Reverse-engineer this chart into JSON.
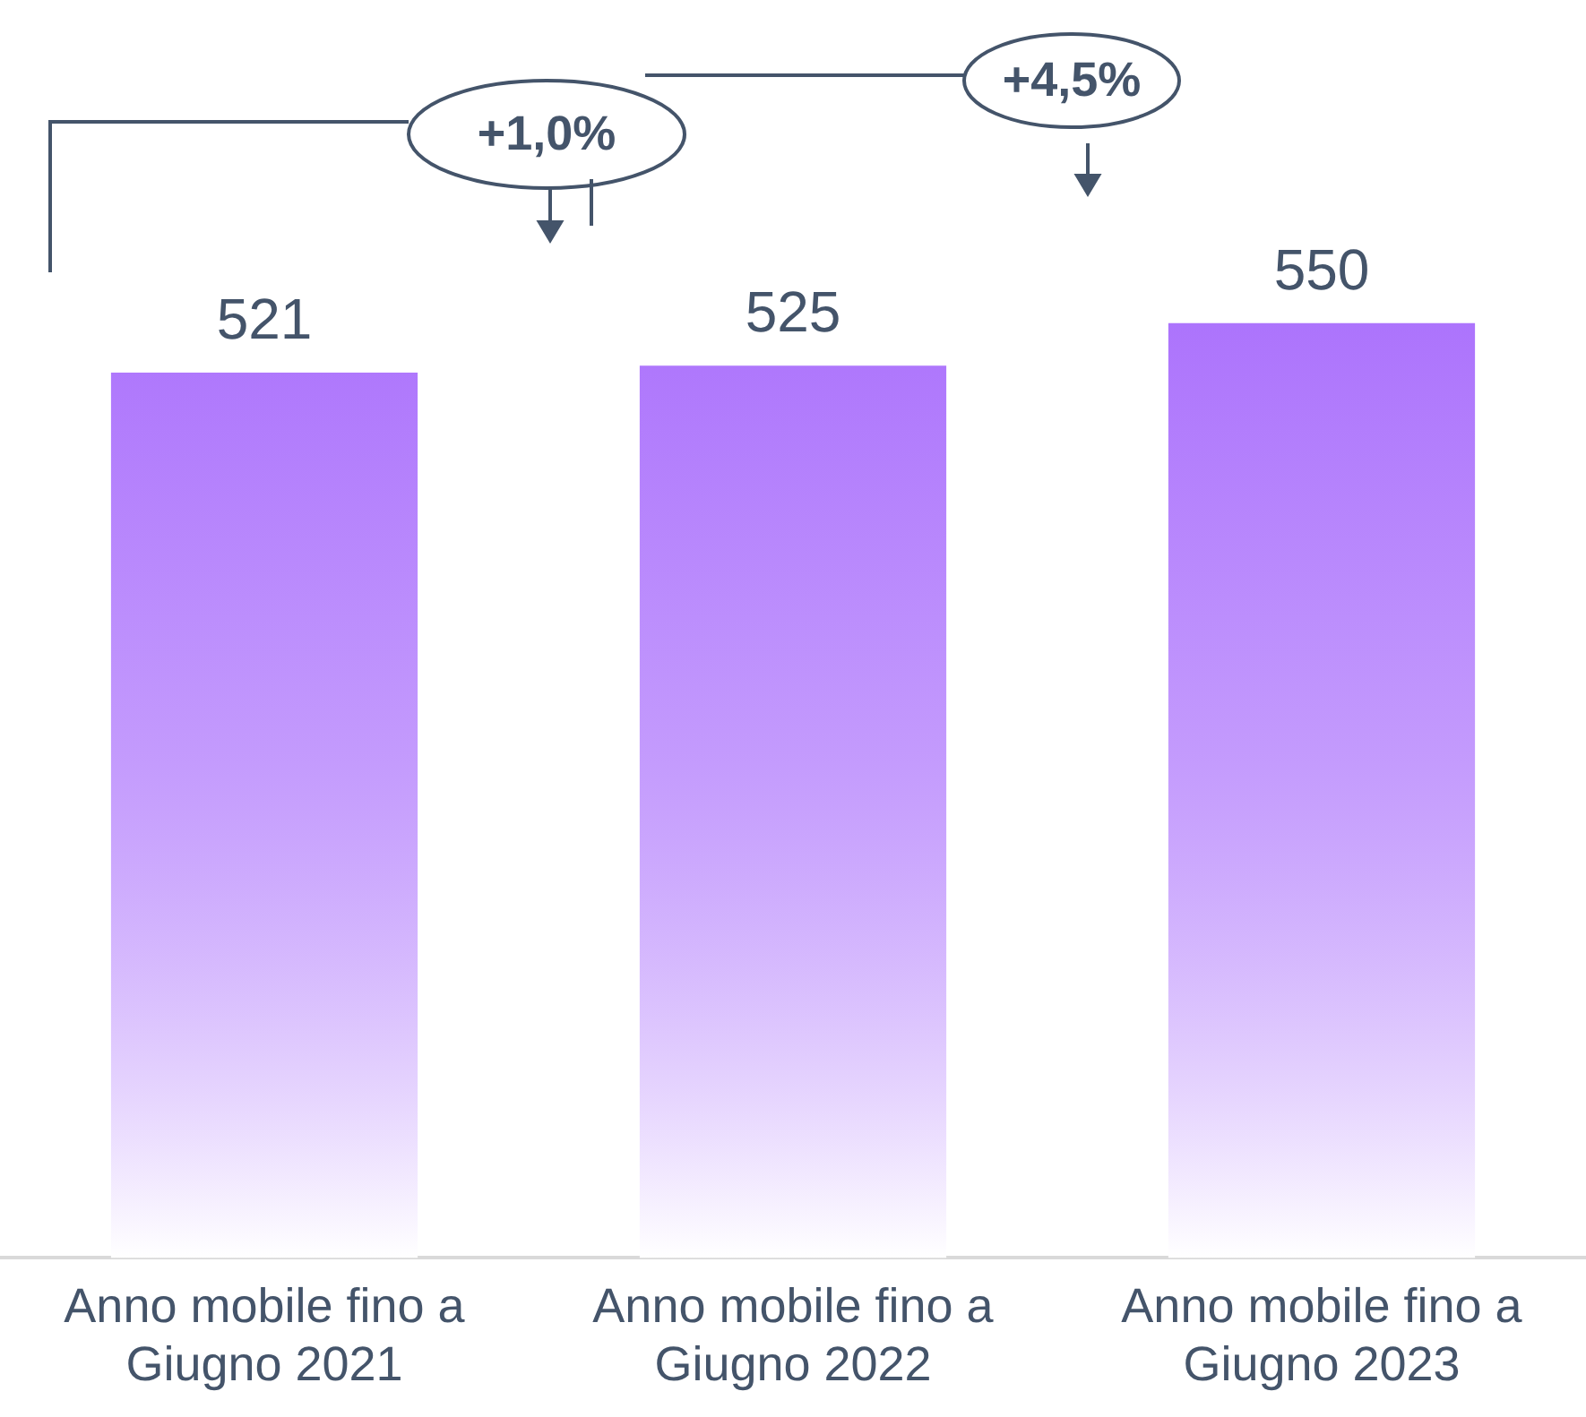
{
  "chart_data": {
    "type": "bar",
    "categories": [
      "Anno mobile fino a Giugno 2021",
      "Anno mobile fino a Giugno 2022",
      "Anno mobile fino a Giugno 2023"
    ],
    "values": [
      521,
      525,
      550
    ],
    "color": "#a86cfc",
    "data_labels": true,
    "tick_labels": "x",
    "grid": false,
    "legend": false,
    "annotations": [
      "+1,0%",
      "+4,5%"
    ]
  }
}
